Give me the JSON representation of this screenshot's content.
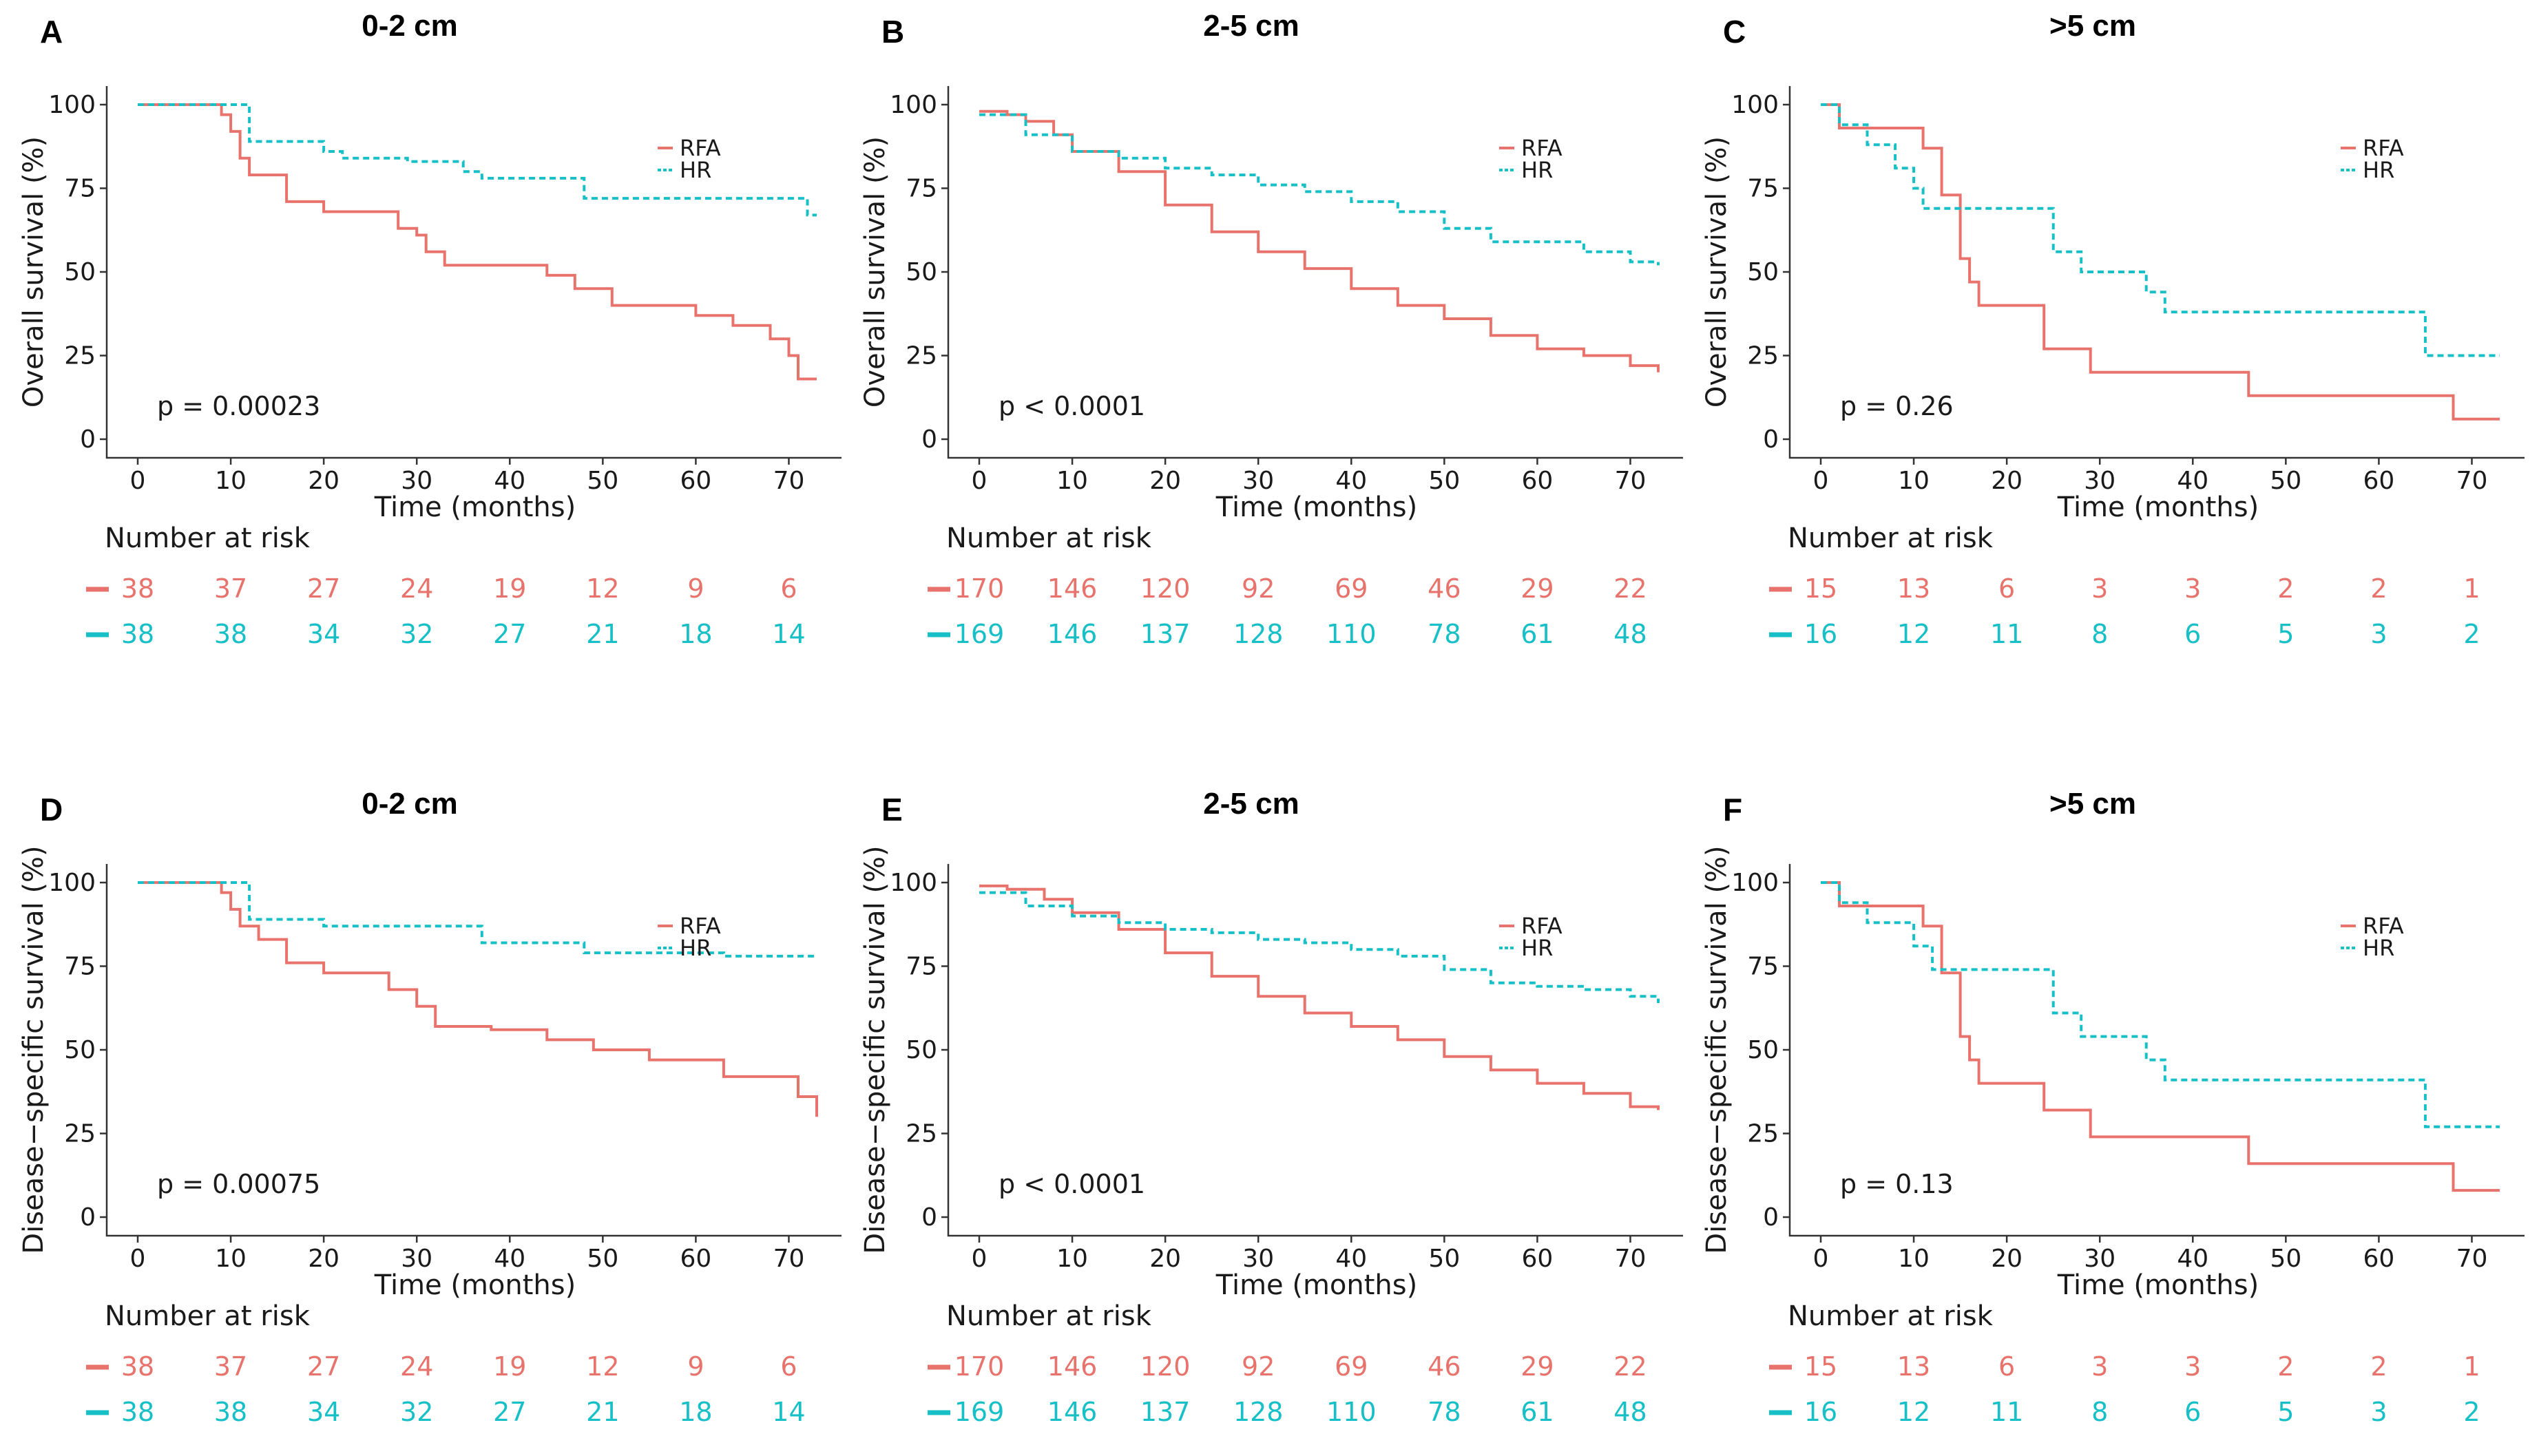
{
  "colors": {
    "RFA": "#e8736c",
    "HR": "#17bfc6"
  },
  "common": {
    "xlabel": "Time (months)",
    "risk_title": "Number at risk",
    "x_ticks": [
      0,
      10,
      20,
      30,
      40,
      50,
      60,
      70
    ],
    "y_ticks": [
      0,
      25,
      50,
      75,
      100
    ],
    "risk_times": [
      0,
      10,
      20,
      30,
      40,
      50,
      60,
      70
    ],
    "xlim": [
      0,
      73
    ],
    "ylim": [
      0,
      100
    ]
  },
  "chart_data": [
    {
      "type": "line",
      "letter": "A",
      "title": "0-2 cm",
      "ylabel": "Overall survival (%)",
      "p_value": "p = 0.00023",
      "series": [
        {
          "name": "RFA",
          "style": "solid",
          "x": [
            0,
            6,
            9,
            10,
            11,
            12,
            16,
            20,
            28,
            30,
            31,
            33,
            44,
            47,
            51,
            60,
            64,
            68,
            70,
            71,
            73
          ],
          "y": [
            100,
            100,
            97,
            92,
            84,
            79,
            71,
            68,
            63,
            61,
            56,
            52,
            49,
            45,
            40,
            37,
            34,
            30,
            25,
            18,
            18
          ]
        },
        {
          "name": "HR",
          "style": "dashed",
          "x": [
            0,
            11,
            12,
            20,
            22,
            29,
            35,
            37,
            48,
            68,
            72,
            73
          ],
          "y": [
            100,
            100,
            89,
            86,
            84,
            83,
            80,
            78,
            72,
            72,
            67,
            67
          ]
        }
      ],
      "risk": {
        "RFA": [
          38,
          37,
          27,
          24,
          19,
          12,
          9,
          6
        ],
        "HR": [
          38,
          38,
          34,
          32,
          27,
          21,
          18,
          14
        ]
      }
    },
    {
      "type": "line",
      "letter": "B",
      "title": "2-5 cm",
      "ylabel": "Overall survival (%)",
      "p_value": "p < 0.0001",
      "series": [
        {
          "name": "RFA",
          "style": "solid",
          "x": [
            0,
            3,
            5,
            8,
            10,
            15,
            20,
            25,
            30,
            35,
            40,
            45,
            50,
            55,
            60,
            65,
            70,
            73
          ],
          "y": [
            98,
            97,
            95,
            91,
            86,
            80,
            70,
            62,
            56,
            51,
            45,
            40,
            36,
            31,
            27,
            25,
            22,
            20
          ]
        },
        {
          "name": "HR",
          "style": "dashed",
          "x": [
            0,
            5,
            10,
            15,
            20,
            25,
            30,
            35,
            40,
            45,
            50,
            55,
            60,
            65,
            70,
            73
          ],
          "y": [
            97,
            91,
            86,
            84,
            81,
            79,
            76,
            74,
            71,
            68,
            63,
            59,
            59,
            56,
            53,
            52
          ]
        }
      ],
      "risk": {
        "RFA": [
          170,
          146,
          120,
          92,
          69,
          46,
          29,
          22
        ],
        "HR": [
          169,
          146,
          137,
          128,
          110,
          78,
          61,
          48
        ]
      }
    },
    {
      "type": "line",
      "letter": "C",
      "title": ">5 cm",
      "ylabel": "Overall survival (%)",
      "p_value": "p = 0.26",
      "series": [
        {
          "name": "RFA",
          "style": "solid",
          "x": [
            0,
            1,
            2,
            8,
            11,
            13,
            15,
            16,
            17,
            19,
            24,
            29,
            46,
            68,
            73
          ],
          "y": [
            100,
            100,
            93,
            93,
            87,
            73,
            54,
            47,
            40,
            40,
            27,
            20,
            13,
            6,
            6
          ]
        },
        {
          "name": "HR",
          "style": "dashed",
          "x": [
            0,
            1,
            2,
            5,
            7,
            8,
            10,
            11,
            14,
            24,
            25,
            28,
            34,
            35,
            37,
            64,
            65,
            73
          ],
          "y": [
            100,
            100,
            94,
            88,
            88,
            81,
            75,
            69,
            69,
            69,
            56,
            50,
            50,
            44,
            38,
            38,
            25,
            25
          ]
        }
      ],
      "risk": {
        "RFA": [
          15,
          13,
          6,
          3,
          3,
          2,
          2,
          1
        ],
        "HR": [
          16,
          12,
          11,
          8,
          6,
          5,
          3,
          2
        ]
      }
    },
    {
      "type": "line",
      "letter": "D",
      "title": "0-2 cm",
      "ylabel": "Disease−specific survival (%)",
      "p_value": "p = 0.00075",
      "series": [
        {
          "name": "RFA",
          "style": "solid",
          "x": [
            0,
            6,
            9,
            10,
            11,
            13,
            16,
            20,
            27,
            30,
            32,
            38,
            44,
            49,
            55,
            63,
            71,
            73
          ],
          "y": [
            100,
            100,
            97,
            92,
            87,
            83,
            76,
            73,
            68,
            63,
            57,
            56,
            53,
            50,
            47,
            42,
            36,
            30
          ]
        },
        {
          "name": "HR",
          "style": "dashed",
          "x": [
            0,
            11,
            12,
            20,
            34,
            37,
            48,
            54,
            63,
            73
          ],
          "y": [
            100,
            100,
            89,
            87,
            87,
            82,
            79,
            79,
            78,
            78
          ]
        }
      ],
      "risk": {
        "RFA": [
          38,
          37,
          27,
          24,
          19,
          12,
          9,
          6
        ],
        "HR": [
          38,
          38,
          34,
          32,
          27,
          21,
          18,
          14
        ]
      }
    },
    {
      "type": "line",
      "letter": "E",
      "title": "2-5 cm",
      "ylabel": "Disease−specific survival (%)",
      "p_value": "p < 0.0001",
      "series": [
        {
          "name": "RFA",
          "style": "solid",
          "x": [
            0,
            3,
            7,
            10,
            15,
            20,
            25,
            30,
            35,
            40,
            45,
            50,
            55,
            60,
            65,
            70,
            73
          ],
          "y": [
            99,
            98,
            95,
            91,
            86,
            79,
            72,
            66,
            61,
            57,
            53,
            48,
            44,
            40,
            37,
            33,
            32
          ]
        },
        {
          "name": "HR",
          "style": "dashed",
          "x": [
            0,
            5,
            10,
            15,
            20,
            25,
            30,
            35,
            40,
            45,
            50,
            55,
            60,
            65,
            70,
            73
          ],
          "y": [
            97,
            93,
            90,
            88,
            86,
            85,
            83,
            82,
            80,
            78,
            74,
            70,
            69,
            68,
            66,
            64
          ]
        }
      ],
      "risk": {
        "RFA": [
          170,
          146,
          120,
          92,
          69,
          46,
          29,
          22
        ],
        "HR": [
          169,
          146,
          137,
          128,
          110,
          78,
          61,
          48
        ]
      }
    },
    {
      "type": "line",
      "letter": "F",
      "title": ">5 cm",
      "ylabel": "Disease−specific survival (%)",
      "p_value": "p = 0.13",
      "series": [
        {
          "name": "RFA",
          "style": "solid",
          "x": [
            0,
            1,
            2,
            8,
            11,
            13,
            15,
            16,
            17,
            19,
            24,
            29,
            46,
            68,
            73
          ],
          "y": [
            100,
            100,
            93,
            93,
            87,
            73,
            54,
            47,
            40,
            40,
            32,
            24,
            16,
            8,
            8
          ]
        },
        {
          "name": "HR",
          "style": "dashed",
          "x": [
            0,
            1,
            2,
            5,
            9,
            10,
            11,
            12,
            24,
            25,
            28,
            34,
            35,
            37,
            64,
            65,
            73
          ],
          "y": [
            100,
            100,
            94,
            88,
            88,
            81,
            81,
            74,
            74,
            61,
            54,
            54,
            47,
            41,
            41,
            27,
            27
          ]
        }
      ],
      "risk": {
        "RFA": [
          15,
          13,
          6,
          3,
          3,
          2,
          2,
          1
        ],
        "HR": [
          16,
          12,
          11,
          8,
          6,
          5,
          3,
          2
        ]
      }
    }
  ]
}
